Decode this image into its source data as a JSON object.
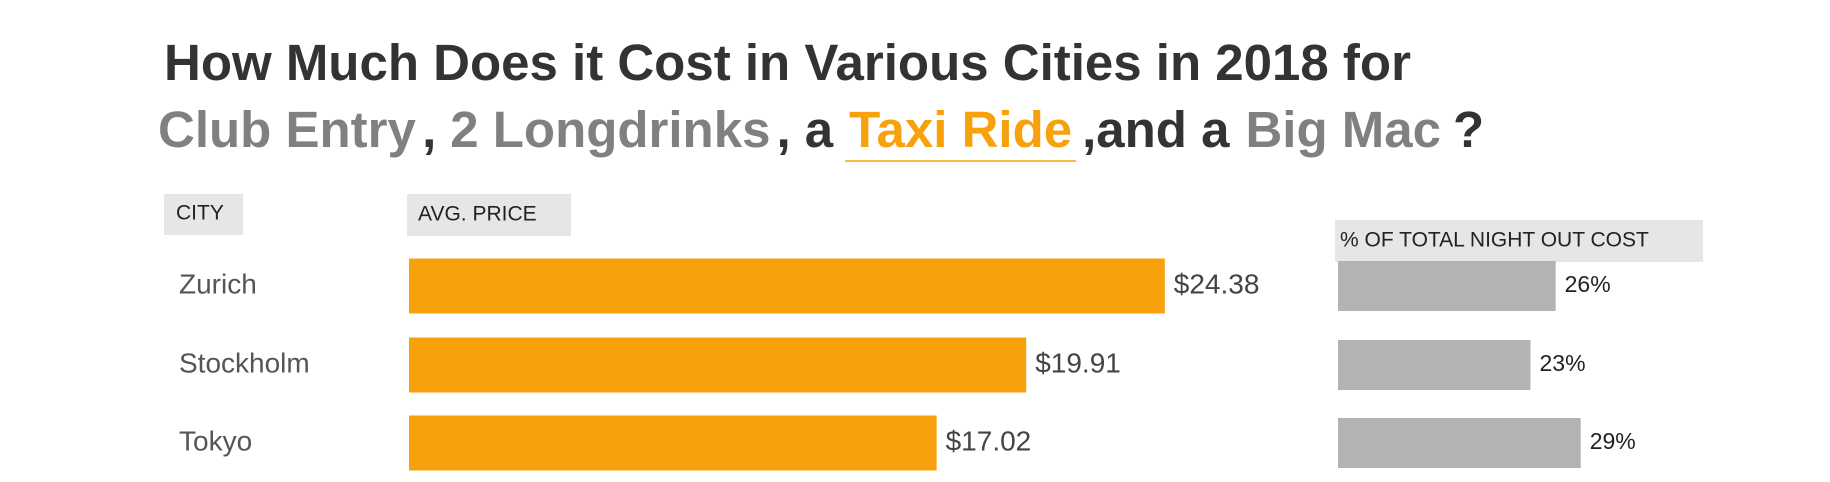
{
  "chart_data": {
    "type": "bar",
    "title": "How Much Does it Cost in Various Cities in 2018 for",
    "subtitle_parts": [
      "Club Entry",
      ",",
      "2 Longdrinks",
      ", a",
      "Taxi Ride",
      ",and a",
      "Big Mac",
      "?"
    ],
    "category_header": "CITY",
    "categories": [
      "Zurich",
      "Stockholm",
      "Tokyo"
    ],
    "series": [
      {
        "name": "AVG. PRICE",
        "color": "#f7a10c",
        "values": [
          24.38,
          19.91,
          17.02
        ],
        "value_labels": [
          "$24.38",
          "$19.91",
          "$17.02"
        ]
      },
      {
        "name": "% OF TOTAL NIGHT OUT COST",
        "color": "#b3b3b3",
        "values": [
          26,
          23,
          29
        ],
        "value_labels": [
          "26%",
          "23%",
          "29%"
        ]
      }
    ]
  }
}
